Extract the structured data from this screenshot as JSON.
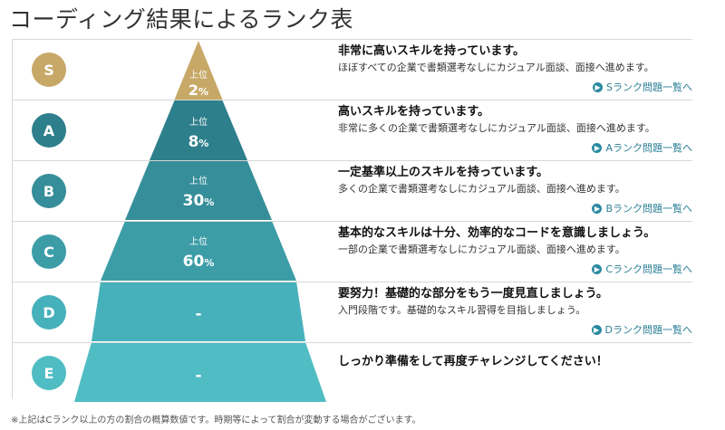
{
  "page": {
    "title": "コーディング結果によるランク表",
    "footnote": "※上記はCランク以上の方の割合の概算数値です。時期等によって割合が変動する場合がございます。"
  },
  "colors": {
    "S": "#c7a867",
    "A": "#2e7f8c",
    "B": "#368e9a",
    "C": "#3c9da7",
    "D": "#46b1bb",
    "E": "#4fbdc3",
    "link": "#2a7e95"
  },
  "ranks": [
    {
      "rank": "S",
      "upper": "上位",
      "pct": "2",
      "unit": "%",
      "heading": "非常に高いスキルを持っています。",
      "desc": "ほぼすべての企業で書類選考なしにカジュアル面談、面接へ進めます。",
      "link": "Sランク問題一覧へ"
    },
    {
      "rank": "A",
      "upper": "上位",
      "pct": "8",
      "unit": "%",
      "heading": "高いスキルを持っています。",
      "desc": "非常に多くの企業で書類選考なしにカジュアル面談、面接へ進めます。",
      "link": "Aランク問題一覧へ"
    },
    {
      "rank": "B",
      "upper": "上位",
      "pct": "30",
      "unit": "%",
      "heading": "一定基準以上のスキルを持っています。",
      "desc": "多くの企業で書類選考なしにカジュアル面談、面接へ進めます。",
      "link": "Bランク問題一覧へ"
    },
    {
      "rank": "C",
      "upper": "上位",
      "pct": "60",
      "unit": "%",
      "heading": "基本的なスキルは十分、効率的なコードを意識しましょう。",
      "desc": "一部の企業で書類選考なしにカジュアル面談、面接へ進めます。",
      "link": "Cランク問題一覧へ"
    },
    {
      "rank": "D",
      "upper": "",
      "pct": "-",
      "unit": "",
      "heading": "要努力！基礎的な部分をもう一度見直しましょう。",
      "desc": "入門段階です。基礎的なスキル習得を目指しましょう。",
      "link": "Dランク問題一覧へ"
    },
    {
      "rank": "E",
      "upper": "",
      "pct": "-",
      "unit": "",
      "heading": "しっかり準備をして再度チャレンジしてください！",
      "desc": "",
      "link": ""
    }
  ]
}
